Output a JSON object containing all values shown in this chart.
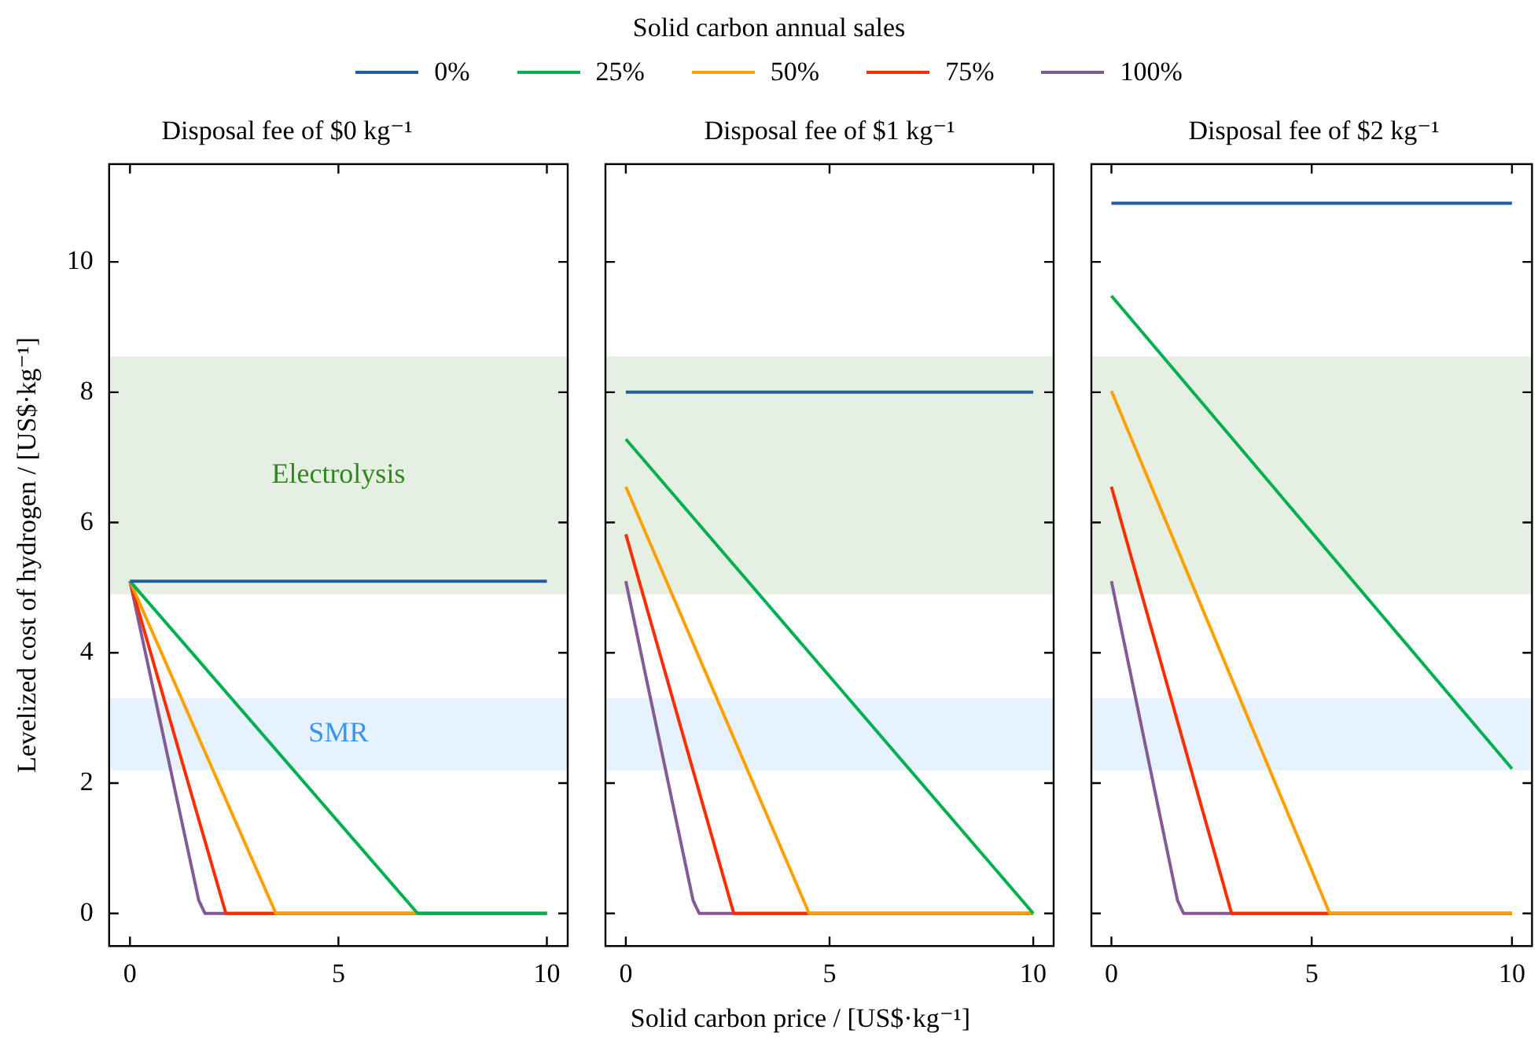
{
  "chart_data": [
    {
      "type": "line",
      "title": "Disposal fee of $0 kg⁻¹",
      "ylabel": "Levelized cost of hydrogen / [US$·kg⁻¹]",
      "legend": "top",
      "legend_title": "Solid carbon annual sales",
      "xlim": [
        -0.5,
        10.5
      ],
      "xticks": [
        0,
        5,
        10
      ],
      "ylim": [
        -0.5,
        11.5
      ],
      "yticks": [
        0,
        2,
        4,
        6,
        8,
        10
      ],
      "grid": false,
      "bands": [
        {
          "axis": "y",
          "from": 4.9,
          "to": 8.55,
          "label": "Electrolysis",
          "color": "#e5f0e3"
        },
        {
          "axis": "y",
          "from": 2.2,
          "to": 3.3,
          "label": "SMR",
          "color": "#e6f2fd"
        }
      ],
      "series": [
        {
          "name": "0%",
          "color": "#1f5fa0",
          "x": [
            0,
            10
          ],
          "values": [
            5.1,
            5.1
          ]
        },
        {
          "name": "25%",
          "color": "#00b050",
          "x": [
            0,
            6.9,
            10
          ],
          "values": [
            5.1,
            0,
            0
          ]
        },
        {
          "name": "50%",
          "color": "#ff9f00",
          "x": [
            0,
            3.5,
            10
          ],
          "values": [
            5.1,
            0,
            0
          ]
        },
        {
          "name": "75%",
          "color": "#ff2c00",
          "x": [
            0,
            2.3,
            10
          ],
          "values": [
            5.1,
            0,
            0
          ]
        },
        {
          "name": "100%",
          "color": "#845b97",
          "x": [
            0,
            1.65,
            1.8,
            10
          ],
          "values": [
            5.1,
            0.2,
            0,
            0
          ]
        }
      ]
    },
    {
      "type": "line",
      "title": "Disposal fee of $1 kg⁻¹",
      "xlabel": "Solid carbon price / [US$·kg⁻¹]",
      "xlim": [
        -0.5,
        10.5
      ],
      "xticks": [
        0,
        5,
        10
      ],
      "ylim": [
        -0.5,
        11.5
      ],
      "yticks": [
        0,
        2,
        4,
        6,
        8,
        10
      ],
      "grid": false,
      "tick_labels": "x",
      "bands": [
        {
          "axis": "y",
          "from": 4.9,
          "to": 8.55,
          "color": "#e5f0e3"
        },
        {
          "axis": "y",
          "from": 2.2,
          "to": 3.3,
          "color": "#e6f2fd"
        }
      ],
      "series": [
        {
          "color": "#1f5fa0",
          "x": [
            0,
            10
          ],
          "values": [
            8.0,
            8.0
          ]
        },
        {
          "color": "#00b050",
          "x": [
            0,
            10
          ],
          "values": [
            7.28,
            0
          ]
        },
        {
          "color": "#ff9f00",
          "x": [
            0,
            4.5,
            10
          ],
          "values": [
            6.55,
            0,
            0
          ]
        },
        {
          "color": "#ff2c00",
          "x": [
            0,
            2.65,
            10
          ],
          "values": [
            5.82,
            0,
            0
          ]
        },
        {
          "color": "#845b97",
          "x": [
            0,
            1.65,
            1.8,
            10
          ],
          "values": [
            5.1,
            0.2,
            0,
            0
          ]
        }
      ]
    },
    {
      "type": "line",
      "title": "Disposal fee of $2 kg⁻¹",
      "xlim": [
        -0.5,
        10.5
      ],
      "xticks": [
        0,
        5,
        10
      ],
      "ylim": [
        -0.5,
        11.5
      ],
      "yticks": [
        0,
        2,
        4,
        6,
        8,
        10
      ],
      "grid": false,
      "tick_labels": "x",
      "bands": [
        {
          "axis": "y",
          "from": 4.9,
          "to": 8.55,
          "color": "#e5f0e3"
        },
        {
          "axis": "y",
          "from": 2.2,
          "to": 3.3,
          "color": "#e6f2fd"
        }
      ],
      "series": [
        {
          "color": "#1f5fa0",
          "x": [
            0,
            10
          ],
          "values": [
            10.9,
            10.9
          ]
        },
        {
          "color": "#00b050",
          "x": [
            0,
            10
          ],
          "values": [
            9.48,
            2.22
          ]
        },
        {
          "color": "#ff9f00",
          "x": [
            0,
            5.45,
            10
          ],
          "values": [
            8.02,
            0,
            0
          ]
        },
        {
          "color": "#ff2c00",
          "x": [
            0,
            3.0,
            10
          ],
          "values": [
            6.55,
            0,
            0
          ]
        },
        {
          "color": "#845b97",
          "x": [
            0,
            1.65,
            1.8,
            10
          ],
          "values": [
            5.1,
            0.2,
            0,
            0
          ]
        }
      ]
    }
  ]
}
